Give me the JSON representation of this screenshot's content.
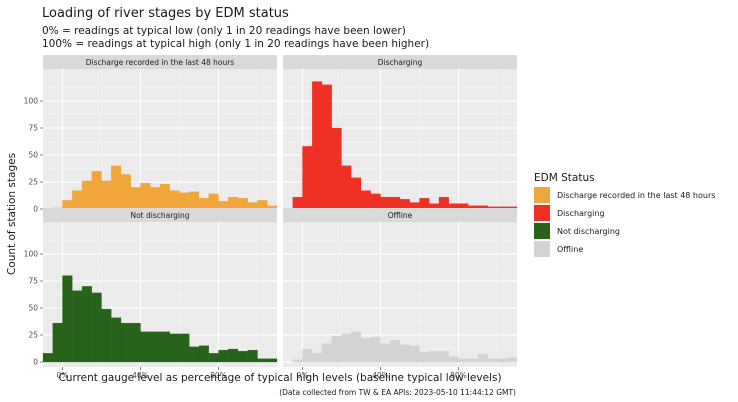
{
  "title": "Loading of river stages by EDM status",
  "subtitle_lines": [
    "0%     = readings at typical low   (only 1 in 20 readings have been lower)",
    "100% = readings at typical high (only 1 in 20  readings have been higher)"
  ],
  "xlabel": "Current gauge level as percentage of typical high levels (baseline typical low levels)",
  "ylabel": "Count of station stages",
  "caption": "(Data collected from TW & EA APIs: 2023-05-10 11:44:12 GMT)",
  "legend_title": "EDM Status",
  "chart_data": {
    "type": "bar",
    "subtype": "faceted histogram",
    "bin_width": 5,
    "x_ticks": [
      "0%",
      "40%",
      "80%"
    ],
    "x_tick_values": [
      0,
      40,
      80
    ],
    "y_ticks": [
      0,
      25,
      50,
      75,
      100
    ],
    "xlim": [
      -10,
      110
    ],
    "ylim": [
      0,
      125
    ],
    "grid": true,
    "legend_position": "right",
    "facets": [
      {
        "name": "Discharge recorded in the last 48 hours",
        "color": "#f0a63a",
        "bin_starts": [
          -10,
          -5,
          0,
          5,
          10,
          15,
          20,
          25,
          30,
          35,
          40,
          45,
          50,
          55,
          60,
          65,
          70,
          75,
          80,
          85,
          90,
          95,
          100,
          105
        ],
        "counts": [
          0,
          1,
          8,
          17,
          26,
          35,
          26,
          40,
          32,
          20,
          24,
          20,
          23,
          17,
          15,
          16,
          10,
          14,
          7,
          11,
          10,
          6,
          8,
          3
        ]
      },
      {
        "name": "Discharging",
        "color": "#ee3124",
        "bin_starts": [
          -10,
          -5,
          0,
          5,
          10,
          15,
          20,
          25,
          30,
          35,
          40,
          45,
          50,
          55,
          60,
          65,
          70,
          75,
          80,
          85,
          90,
          95,
          100,
          105
        ],
        "counts": [
          0,
          11,
          58,
          118,
          115,
          75,
          40,
          29,
          17,
          14,
          11,
          11,
          9,
          6,
          10,
          5,
          11,
          5,
          5,
          3,
          3,
          2,
          2,
          2
        ]
      },
      {
        "name": "Not discharging",
        "color": "#27631a",
        "bin_starts": [
          -10,
          -5,
          0,
          5,
          10,
          15,
          20,
          25,
          30,
          35,
          40,
          45,
          50,
          55,
          60,
          65,
          70,
          75,
          80,
          85,
          90,
          95,
          100,
          105
        ],
        "counts": [
          8,
          36,
          80,
          66,
          70,
          64,
          49,
          41,
          36,
          36,
          28,
          28,
          28,
          26,
          26,
          14,
          15,
          8,
          11,
          12,
          10,
          11,
          3,
          3
        ]
      },
      {
        "name": "Offline",
        "color": "#d3d3d3",
        "bin_starts": [
          -10,
          -5,
          0,
          5,
          10,
          15,
          20,
          25,
          30,
          35,
          40,
          45,
          50,
          55,
          60,
          65,
          70,
          75,
          80,
          85,
          90,
          95,
          100,
          105
        ],
        "counts": [
          0,
          2,
          12,
          8,
          17,
          24,
          26,
          28,
          22,
          23,
          17,
          20,
          16,
          15,
          9,
          10,
          10,
          5,
          3,
          3,
          7,
          3,
          3,
          4
        ]
      }
    ]
  }
}
